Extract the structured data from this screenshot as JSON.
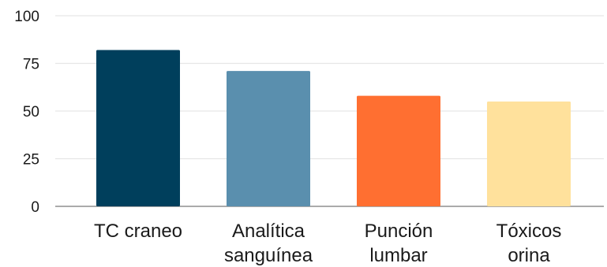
{
  "chart_data": {
    "type": "bar",
    "title": "",
    "xlabel": "",
    "ylabel": "",
    "categories": [
      "TC craneo",
      "Analítica sanguínea",
      "Punción lumbar",
      "Tóxicos orina"
    ],
    "category_lines": [
      [
        "TC craneo"
      ],
      [
        "Analítica",
        "sanguínea"
      ],
      [
        "Punción",
        "lumbar"
      ],
      [
        "Tóxicos",
        "orina"
      ]
    ],
    "values": [
      82,
      71,
      58,
      55
    ],
    "colors": [
      "#003f5c",
      "#5a8fae",
      "#ff6f31",
      "#ffe19c"
    ],
    "ylim": [
      0,
      100
    ],
    "yticks": [
      0,
      25,
      50,
      75,
      100
    ],
    "grid": true,
    "legend": "none"
  }
}
